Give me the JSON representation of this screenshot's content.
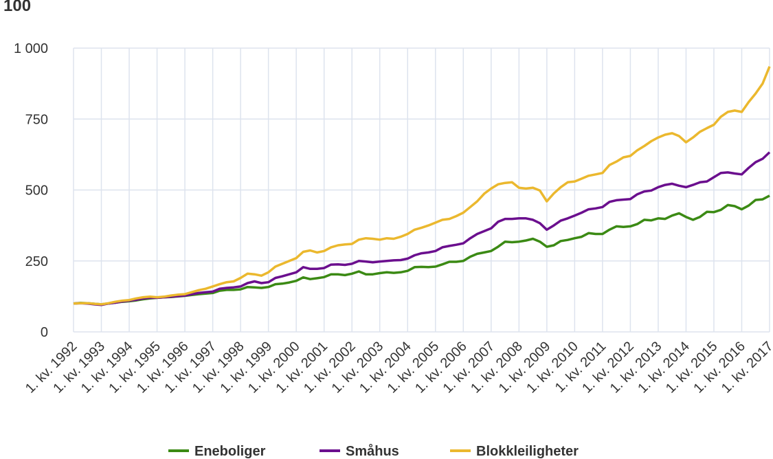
{
  "chart_data": {
    "type": "line",
    "title": "100",
    "categories": [
      "1. kv. 1992",
      null,
      null,
      null,
      "1. kv. 1993",
      null,
      null,
      null,
      "1. kv. 1994",
      null,
      null,
      null,
      "1. kv. 1995",
      null,
      null,
      null,
      "1. kv. 1996",
      null,
      null,
      null,
      "1. kv. 1997",
      null,
      null,
      null,
      "1. kv. 1998",
      null,
      null,
      null,
      "1. kv. 1999",
      null,
      null,
      null,
      "1. kv. 2000",
      null,
      null,
      null,
      "1. kv. 2001",
      null,
      null,
      null,
      "1. kv. 2002",
      null,
      null,
      null,
      "1. kv. 2003",
      null,
      null,
      null,
      "1. kv. 2004",
      null,
      null,
      null,
      "1. kv. 2005",
      null,
      null,
      null,
      "1. kv. 2006",
      null,
      null,
      null,
      "1. kv. 2007",
      null,
      null,
      null,
      "1. kv. 2008",
      null,
      null,
      null,
      "1. kv. 2009",
      null,
      null,
      null,
      "1. kv. 2010",
      null,
      null,
      null,
      "1. kv. 2011",
      null,
      null,
      null,
      "1. kv. 2012",
      null,
      null,
      null,
      "1. kv. 2013",
      null,
      null,
      null,
      "1. kv. 2014",
      null,
      null,
      null,
      "1. kv. 2015",
      null,
      null,
      null,
      "1. kv. 2016",
      null,
      null,
      null,
      "1. kv. 2017"
    ],
    "series": [
      {
        "name": "Eneboliger",
        "color": "#3b8a14",
        "values": [
          100,
          102,
          101,
          99,
          97,
          100,
          103,
          106,
          108,
          111,
          115,
          118,
          120,
          122,
          123,
          125,
          127,
          130,
          133,
          135,
          137,
          145,
          148,
          148,
          150,
          158,
          157,
          155,
          158,
          168,
          170,
          174,
          180,
          192,
          186,
          189,
          193,
          203,
          203,
          200,
          205,
          213,
          203,
          203,
          207,
          210,
          208,
          210,
          215,
          228,
          229,
          228,
          230,
          238,
          247,
          247,
          250,
          265,
          275,
          280,
          285,
          300,
          318,
          316,
          318,
          322,
          328,
          318,
          300,
          305,
          320,
          324,
          330,
          335,
          348,
          345,
          345,
          360,
          372,
          370,
          372,
          380,
          395,
          393,
          400,
          398,
          410,
          418,
          405,
          395,
          405,
          423,
          422,
          430,
          447,
          443,
          432,
          445,
          465,
          467,
          480
        ]
      },
      {
        "name": "Småhus",
        "color": "#6b0f8e",
        "values": [
          100,
          101,
          100,
          97,
          95,
          100,
          103,
          107,
          110,
          113,
          118,
          120,
          120,
          122,
          124,
          126,
          128,
          133,
          137,
          140,
          142,
          152,
          155,
          157,
          160,
          172,
          178,
          172,
          175,
          190,
          196,
          203,
          210,
          228,
          222,
          222,
          225,
          237,
          238,
          236,
          240,
          250,
          248,
          245,
          248,
          250,
          252,
          253,
          258,
          270,
          277,
          280,
          285,
          298,
          303,
          307,
          312,
          330,
          345,
          355,
          365,
          388,
          398,
          398,
          400,
          400,
          395,
          383,
          360,
          375,
          392,
          400,
          410,
          420,
          432,
          435,
          440,
          458,
          464,
          466,
          468,
          485,
          495,
          498,
          510,
          518,
          522,
          515,
          510,
          518,
          527,
          530,
          545,
          560,
          562,
          558,
          555,
          578,
          598,
          610,
          633
        ]
      },
      {
        "name": "Blokkleiligheter",
        "color": "#ebb82e",
        "values": [
          100,
          101,
          101,
          99,
          97,
          101,
          106,
          110,
          112,
          118,
          122,
          124,
          122,
          124,
          128,
          131,
          133,
          140,
          147,
          152,
          160,
          168,
          175,
          178,
          190,
          205,
          203,
          198,
          210,
          230,
          240,
          250,
          260,
          282,
          287,
          280,
          285,
          298,
          305,
          308,
          310,
          325,
          330,
          328,
          325,
          330,
          328,
          335,
          345,
          360,
          367,
          375,
          385,
          395,
          398,
          408,
          420,
          440,
          460,
          487,
          505,
          520,
          525,
          527,
          508,
          505,
          508,
          498,
          460,
          488,
          510,
          527,
          530,
          540,
          550,
          555,
          560,
          588,
          600,
          615,
          620,
          640,
          655,
          672,
          685,
          695,
          700,
          690,
          668,
          685,
          705,
          718,
          730,
          758,
          775,
          780,
          775,
          810,
          840,
          875,
          935
        ]
      }
    ],
    "ylim": [
      0,
      1000
    ],
    "yticks": [
      0,
      250,
      500,
      750,
      {
        "value": 1000,
        "label": "1 000"
      }
    ],
    "grid": true,
    "legend": "bottom"
  }
}
